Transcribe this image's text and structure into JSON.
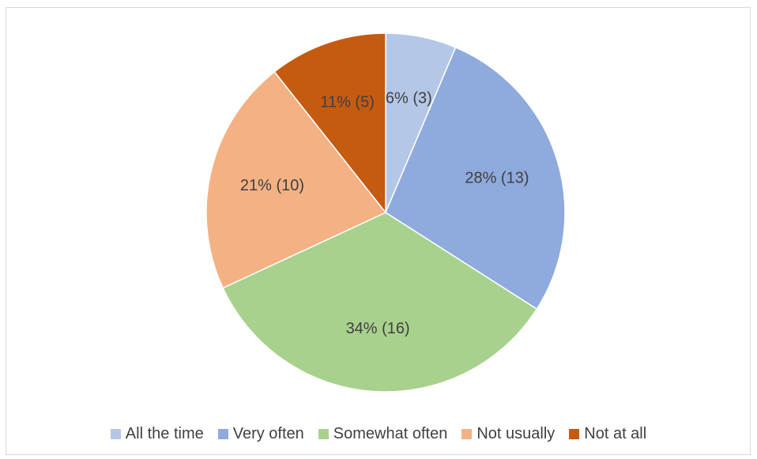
{
  "chart_data": {
    "type": "pie",
    "categories": [
      "All the time",
      "Very often",
      "Somewhat often",
      "Not usually",
      "Not at all"
    ],
    "values": [
      3,
      13,
      16,
      10,
      5
    ],
    "labels": [
      "6% (3)",
      "28% (13)",
      "34% (16)",
      "21% (10)",
      "11% (5)"
    ],
    "colors": [
      "#b4c7e7",
      "#8faadc",
      "#a9d18e",
      "#f4b183",
      "#c55a11"
    ],
    "legend_position": "bottom",
    "start": "top",
    "direction": "clockwise"
  }
}
